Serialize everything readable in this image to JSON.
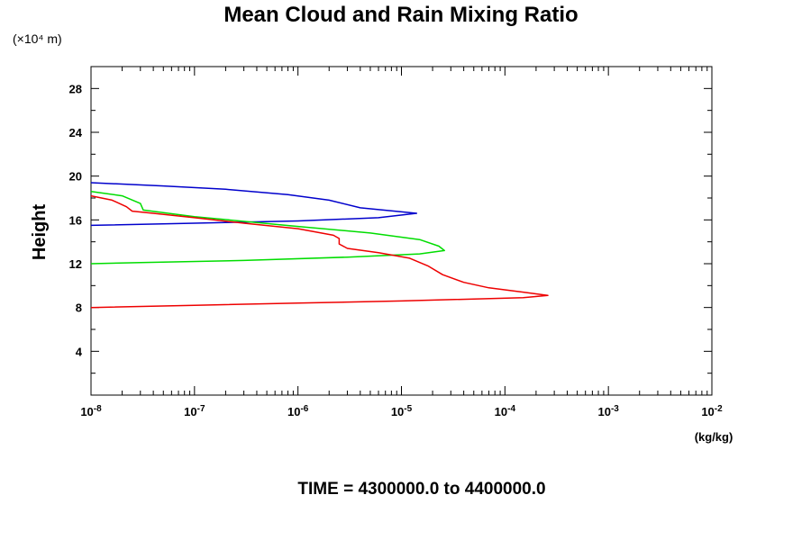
{
  "chart_data": {
    "type": "line",
    "title": "Mean Cloud and Rain Mixing Ratio",
    "ylabel": "Height",
    "y_scale_note": "(×10⁴ m)",
    "xlabel": "(kg/kg)",
    "x_scale": "log",
    "xlim": [
      1e-08,
      0.01
    ],
    "ylim": [
      0,
      30
    ],
    "x_ticks": [
      1e-08,
      1e-07,
      1e-06,
      1e-05,
      0.0001,
      0.001,
      0.01
    ],
    "x_tick_labels": [
      "10-8",
      "10-7",
      "10-6",
      "10-5",
      "10-4",
      "10-3",
      "10-2"
    ],
    "y_ticks": [
      4,
      8,
      12,
      16,
      20,
      24,
      28
    ],
    "y_tick_labels": [
      "4",
      "8",
      "12",
      "16",
      "20",
      "24",
      "28"
    ],
    "series": [
      {
        "color": "#0000cc",
        "points": [
          [
            1e-08,
            19.4
          ],
          [
            5e-08,
            19.1
          ],
          [
            2e-07,
            18.8
          ],
          [
            8e-07,
            18.3
          ],
          [
            2e-06,
            17.8
          ],
          [
            4e-06,
            17.1
          ],
          [
            1.4e-05,
            16.6
          ],
          [
            6e-06,
            16.2
          ],
          [
            1e-06,
            15.9
          ],
          [
            1e-07,
            15.7
          ],
          [
            1e-08,
            15.5
          ]
        ]
      },
      {
        "color": "#00dd00",
        "points": [
          [
            1e-08,
            18.6
          ],
          [
            2e-08,
            18.2
          ],
          [
            3e-08,
            17.5
          ],
          [
            3.2e-08,
            16.9
          ],
          [
            1e-07,
            16.3
          ],
          [
            1e-06,
            15.4
          ],
          [
            5e-06,
            14.8
          ],
          [
            1.5e-05,
            14.2
          ],
          [
            2.3e-05,
            13.6
          ],
          [
            2.6e-05,
            13.2
          ],
          [
            1.5e-05,
            12.9
          ],
          [
            3e-06,
            12.6
          ],
          [
            3e-07,
            12.3
          ],
          [
            3e-08,
            12.1
          ],
          [
            1e-08,
            12.0
          ]
        ]
      },
      {
        "color": "#ee0000",
        "points": [
          [
            1e-08,
            18.2
          ],
          [
            1.6e-08,
            17.8
          ],
          [
            2.2e-08,
            17.2
          ],
          [
            2.5e-08,
            16.8
          ],
          [
            4e-08,
            16.6
          ],
          [
            1e-07,
            16.2
          ],
          [
            3e-07,
            15.7
          ],
          [
            1e-06,
            15.2
          ],
          [
            2.2e-06,
            14.6
          ],
          [
            2.5e-06,
            14.3
          ],
          [
            2.5e-06,
            13.8
          ],
          [
            3e-06,
            13.4
          ],
          [
            6e-06,
            13.0
          ],
          [
            1.2e-05,
            12.5
          ],
          [
            1.8e-05,
            11.8
          ],
          [
            2.5e-05,
            11.0
          ],
          [
            4e-05,
            10.3
          ],
          [
            7e-05,
            9.8
          ],
          [
            0.00015,
            9.4
          ],
          [
            0.00026,
            9.1
          ],
          [
            0.00015,
            8.9
          ],
          [
            1e-05,
            8.6
          ],
          [
            1e-06,
            8.4
          ],
          [
            1e-07,
            8.2
          ],
          [
            1e-08,
            8.0
          ]
        ]
      }
    ]
  },
  "footer": {
    "time_label": "TIME = 4300000.0 to 4400000.0"
  }
}
